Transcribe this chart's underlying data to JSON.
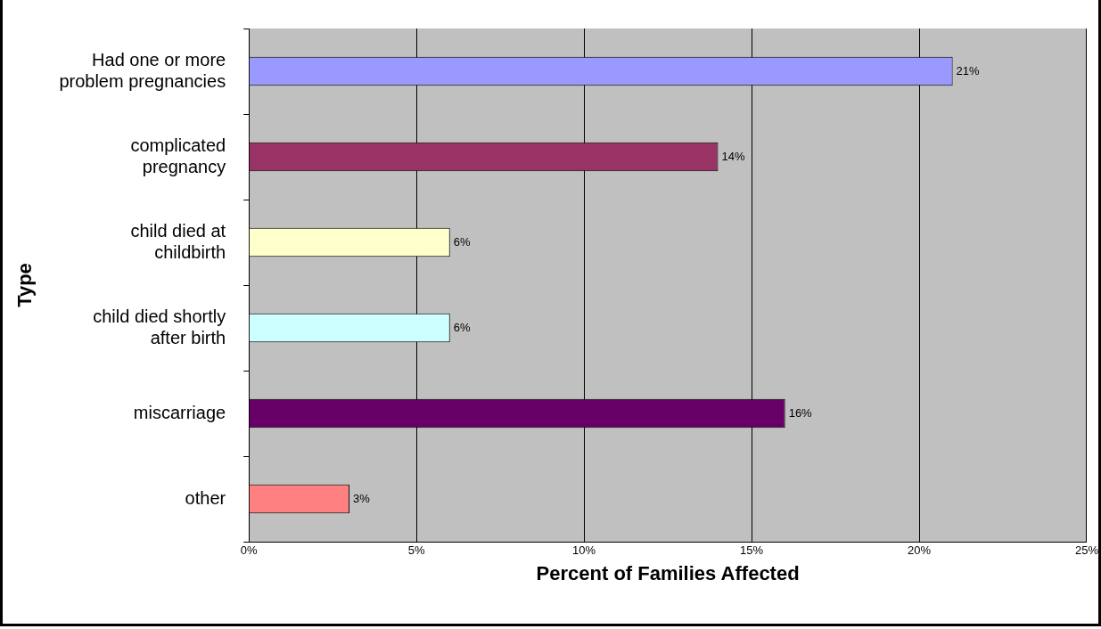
{
  "chart_data": {
    "type": "bar",
    "orientation": "horizontal",
    "xlabel": "Percent of Families Affected",
    "ylabel": "Type",
    "categories": [
      [
        "Had one or more",
        "problem pregnancies"
      ],
      [
        "complicated",
        "pregnancy"
      ],
      [
        "child died at",
        "childbirth"
      ],
      [
        "child died shortly",
        "after birth"
      ],
      "miscarriage",
      "other"
    ],
    "values": [
      21,
      14,
      6,
      6,
      16,
      3
    ],
    "colors": [
      "#9999ff",
      "#993366",
      "#ffffcc",
      "#ccffff",
      "#660066",
      "#ff8080"
    ],
    "value_labels": [
      "21%",
      "14%",
      "6%",
      "6%",
      "16%",
      "3%"
    ],
    "xlim": [
      0,
      25
    ],
    "xticks": [
      {
        "value": 0,
        "label": "0%"
      },
      {
        "value": 5,
        "label": "5%"
      },
      {
        "value": 10,
        "label": "10%"
      },
      {
        "value": 15,
        "label": "15%"
      },
      {
        "value": 20,
        "label": "20%"
      },
      {
        "value": 25,
        "label": "25%"
      }
    ],
    "grid": "x",
    "legend": false
  }
}
